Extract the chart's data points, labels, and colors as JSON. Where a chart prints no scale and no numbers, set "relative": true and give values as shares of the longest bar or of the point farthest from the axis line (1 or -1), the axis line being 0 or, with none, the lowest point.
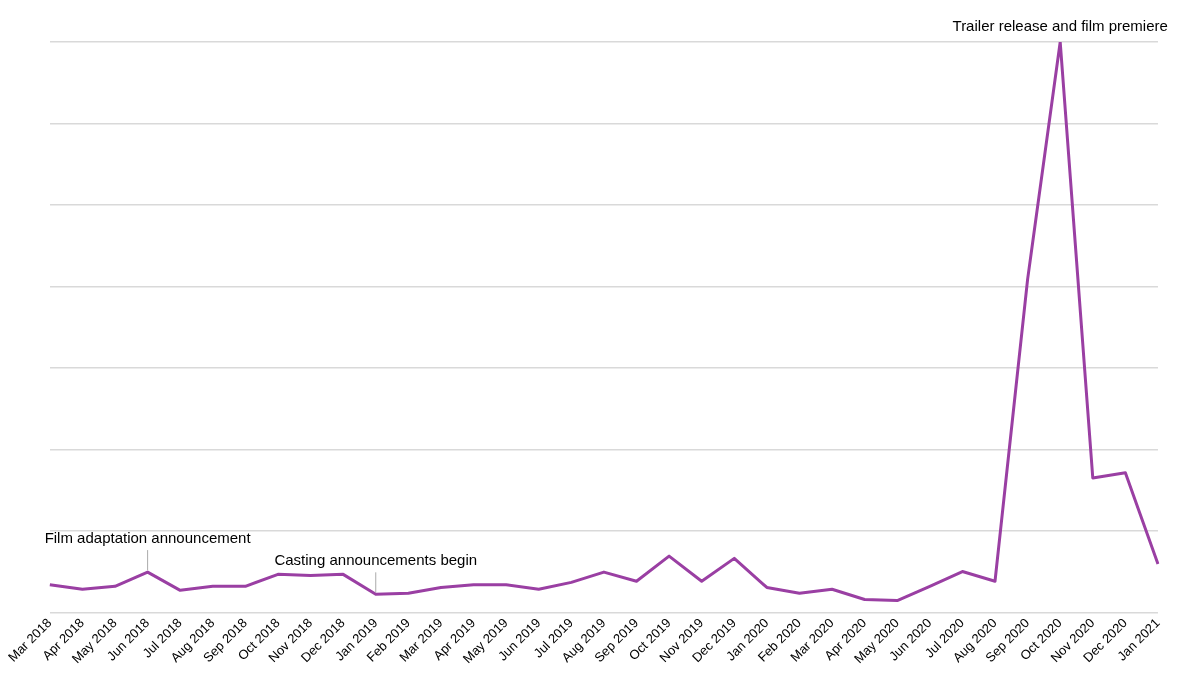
{
  "chart_data": {
    "type": "line",
    "relative": true,
    "grid": "y",
    "color": "#9a3fa3",
    "marker": "none",
    "line_style": "solid",
    "categories": [
      "Mar 2018",
      "Apr 2018",
      "May 2018",
      "Jun 2018",
      "Jul 2018",
      "Aug 2018",
      "Sep 2018",
      "Oct 2018",
      "Nov 2018",
      "Dec 2018",
      "Jan 2019",
      "Feb 2019",
      "Mar 2019",
      "Apr 2019",
      "May 2019",
      "Jun 2019",
      "Jul 2019",
      "Aug 2019",
      "Sep 2019",
      "Oct 2019",
      "Nov 2019",
      "Dec 2019",
      "Jan 2020",
      "Feb 2020",
      "Mar 2020",
      "Apr 2020",
      "May 2020",
      "Jun 2020",
      "Jul 2020",
      "Aug 2020",
      "Sep 2020",
      "Oct 2020",
      "Nov 2020",
      "Dec 2020",
      "Jan 2021"
    ],
    "values": [
      0.049,
      0.041,
      0.046,
      0.071,
      0.039,
      0.046,
      0.046,
      0.067,
      0.065,
      0.067,
      0.032,
      0.034,
      0.044,
      0.049,
      0.049,
      0.041,
      0.053,
      0.071,
      0.055,
      0.099,
      0.055,
      0.095,
      0.044,
      0.034,
      0.041,
      0.023,
      0.021,
      0.046,
      0.072,
      0.055,
      0.584,
      1,
      0.236,
      0.245,
      0.085
    ],
    "annotations": [
      {
        "text": "Film adaptation announcement",
        "x": "Jun 2018",
        "y": 0.071
      },
      {
        "text": "Casting announcements begin",
        "x": "Jan 2019",
        "y": 0.032
      },
      {
        "text": "Trailer release and film premiere",
        "x": "Oct 2020",
        "y": 1
      }
    ]
  }
}
